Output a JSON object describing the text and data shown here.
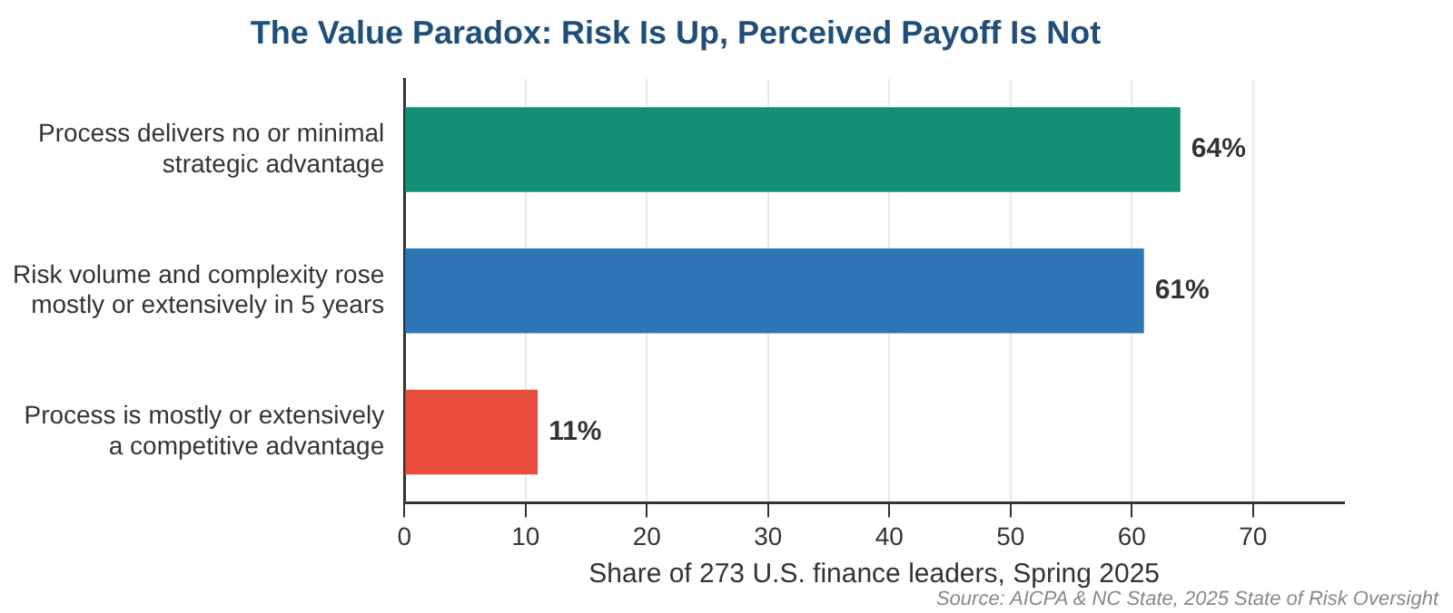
{
  "chart_data": {
    "type": "bar",
    "orientation": "horizontal",
    "title": "The Value Paradox: Risk Is Up, Perceived Payoff Is Not",
    "xlabel": "Share of 273 U.S. finance leaders, Spring 2025",
    "categories": [
      "Process delivers no or minimal\nstrategic advantage",
      "Risk volume and complexity rose\nmostly or extensively in 5 years",
      "Process is mostly or extensively\na competitive advantage"
    ],
    "values": [
      64,
      61,
      11
    ],
    "colors": [
      "#138f74",
      "#2e75b6",
      "#e74c3c"
    ],
    "value_labels": [
      "64%",
      "61%",
      "11%"
    ],
    "xlim": [
      0,
      77.5
    ],
    "xticks": [
      0,
      10,
      20,
      30,
      40,
      50,
      60,
      70
    ],
    "grid": "x",
    "annotations": [
      "Source: AICPA & NC State, 2025 State of Risk Oversight"
    ]
  }
}
